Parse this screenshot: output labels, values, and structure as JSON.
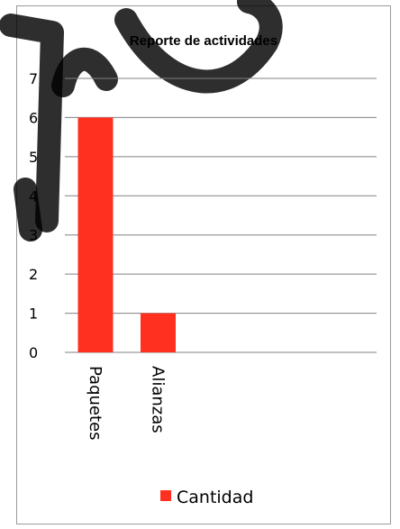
{
  "chart_data": {
    "type": "bar",
    "title": "Reporte de actividades",
    "categories": [
      "Paquetes",
      "Alianzas"
    ],
    "series": [
      {
        "name": "Cantidad",
        "values": [
          6,
          1
        ],
        "color": "#ff3020"
      }
    ],
    "y_ticks": [
      "0",
      "1",
      "2",
      "3",
      "4",
      "5",
      "6",
      "7"
    ],
    "ylim": [
      0,
      7
    ],
    "grid": true,
    "legend_position": "bottom",
    "category_label_orientation": "rotated-90-clockwise"
  }
}
